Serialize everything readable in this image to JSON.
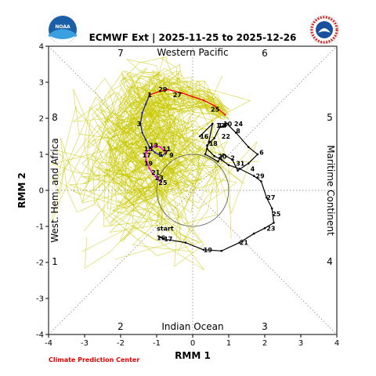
{
  "title": "ECMWF Ext | 2025-11-25 to 2025-12-26",
  "credit": "Climate Prediction Center",
  "logos": {
    "left": "NOAA",
    "right": "NATIONAL WEATHER SERVICE"
  },
  "chart_data": {
    "type": "scatter",
    "xlabel": "RMM 1",
    "ylabel": "RMM 2",
    "xlim": [
      -4,
      4
    ],
    "ylim": [
      -4,
      4
    ],
    "ticks": [
      "-4",
      "-3",
      "-2",
      "-1",
      "0",
      "1",
      "2",
      "3",
      "4"
    ],
    "phase_labels": [
      "1",
      "2",
      "3",
      "4",
      "5",
      "6",
      "7",
      "8"
    ],
    "regions": {
      "top": "Western Pacific",
      "bottom": "Indian Ocean",
      "left": "West. Hem. and Africa",
      "right": "Maritime Continent"
    },
    "colors": {
      "observed": "#000000",
      "ensemble": "#c8c800",
      "mean_red": "#ff0000",
      "mean_blue": "#1c1ca0",
      "mean_magenta": "#ff00ff"
    },
    "observed": {
      "start_label": "start",
      "x": [
        -0.9,
        -0.8,
        -0.2,
        0.3,
        0.8,
        1.3,
        1.7,
        2.0,
        2.25,
        2.2,
        2.05,
        1.9,
        1.7,
        1.3,
        1.0,
        0.8,
        0.6,
        0.4,
        0.4,
        0.6,
        0.75,
        0.95,
        1.2,
        1.55,
        1.8,
        1.55,
        1.25,
        1.1,
        0.85,
        0.7,
        0.35,
        0.45,
        0.55,
        0.2
      ],
      "y": [
        -1.3,
        -1.35,
        -1.45,
        -1.65,
        -1.68,
        -1.45,
        -1.2,
        -1.05,
        -0.9,
        -0.5,
        -0.2,
        0.25,
        0.4,
        0.6,
        0.7,
        0.85,
        0.95,
        1.15,
        1.25,
        1.45,
        1.75,
        1.85,
        1.6,
        1.2,
        1.0,
        0.75,
        0.55,
        0.85,
        1.0,
        0.8,
        1.0,
        1.35,
        1.85,
        1.5
      ],
      "labels": [
        {
          "text": "16",
          "x": -1.0,
          "y": -1.32
        },
        {
          "text": "17",
          "x": -0.8,
          "y": -1.35
        },
        {
          "text": "19",
          "x": 0.3,
          "y": -1.65
        },
        {
          "text": "21",
          "x": 1.3,
          "y": -1.45
        },
        {
          "text": "23",
          "x": 2.05,
          "y": -1.05
        },
        {
          "text": "25",
          "x": 2.2,
          "y": -0.65
        },
        {
          "text": "27",
          "x": 2.05,
          "y": -0.2
        },
        {
          "text": "29",
          "x": 1.75,
          "y": 0.4
        },
        {
          "text": "4",
          "x": 1.6,
          "y": 0.6
        },
        {
          "text": "6",
          "x": 1.85,
          "y": 1.05
        },
        {
          "text": "8",
          "x": 1.2,
          "y": 1.65
        },
        {
          "text": "10",
          "x": 0.85,
          "y": 1.85
        },
        {
          "text": "12",
          "x": 0.65,
          "y": 1.8
        },
        {
          "text": "14",
          "x": 0.7,
          "y": 1.8
        },
        {
          "text": "16",
          "x": 0.2,
          "y": 1.5
        },
        {
          "text": "18",
          "x": 0.45,
          "y": 1.3
        },
        {
          "text": "20",
          "x": 0.7,
          "y": 0.95
        },
        {
          "text": "22",
          "x": 0.8,
          "y": 1.5
        },
        {
          "text": "24",
          "x": 1.15,
          "y": 1.85
        },
        {
          "text": "2",
          "x": 1.05,
          "y": 0.9
        },
        {
          "text": "31",
          "x": 1.2,
          "y": 0.75
        }
      ]
    },
    "forecast_mean": {
      "red": {
        "x": [
          0.9,
          0.6,
          0.3,
          0.0,
          -0.3,
          -0.7,
          -0.9,
          -1.2
        ],
        "y": [
          2.1,
          2.35,
          2.5,
          2.6,
          2.7,
          2.8,
          2.75,
          2.65
        ]
      },
      "blue": {
        "x": [
          -1.2,
          -1.3,
          -1.4,
          -1.45,
          -1.4,
          -1.3,
          -1.2,
          -1.05,
          -0.85,
          -0.75
        ],
        "y": [
          2.65,
          2.4,
          2.15,
          1.85,
          1.6,
          1.4,
          1.2,
          1.05,
          0.95,
          1.05
        ]
      },
      "magenta": {
        "x": [
          -0.75,
          -0.9,
          -1.05,
          -1.3,
          -1.3,
          -1.2,
          -1.1,
          -1.0,
          -0.9
        ],
        "y": [
          1.05,
          1.2,
          1.25,
          1.05,
          0.85,
          0.6,
          0.45,
          0.35,
          0.25
        ]
      },
      "labels": [
        {
          "text": "25",
          "x": 0.5,
          "y": 2.25
        },
        {
          "text": "27",
          "x": -0.55,
          "y": 2.65
        },
        {
          "text": "29",
          "x": -0.95,
          "y": 2.8
        },
        {
          "text": "1",
          "x": -1.25,
          "y": 2.65
        },
        {
          "text": "3",
          "x": -1.55,
          "y": 1.85
        },
        {
          "text": "5",
          "x": -0.95,
          "y": 1.0
        },
        {
          "text": "7",
          "x": -0.8,
          "y": 1.05
        },
        {
          "text": "9",
          "x": -0.65,
          "y": 0.98
        },
        {
          "text": "11",
          "x": -0.85,
          "y": 1.15
        },
        {
          "text": "13",
          "x": -1.2,
          "y": 1.25
        },
        {
          "text": "15",
          "x": -1.35,
          "y": 1.15
        },
        {
          "text": "17",
          "x": -1.4,
          "y": 0.98
        },
        {
          "text": "19",
          "x": -1.35,
          "y": 0.75
        },
        {
          "text": "21",
          "x": -1.15,
          "y": 0.5
        },
        {
          "text": "23",
          "x": -1.05,
          "y": 0.35
        },
        {
          "text": "25",
          "x": -0.95,
          "y": 0.22
        }
      ]
    },
    "amplitude_circle_radius": 1,
    "ensemble_members": 40,
    "grid": "diagonal dotted phase lines",
    "legend": "none"
  }
}
